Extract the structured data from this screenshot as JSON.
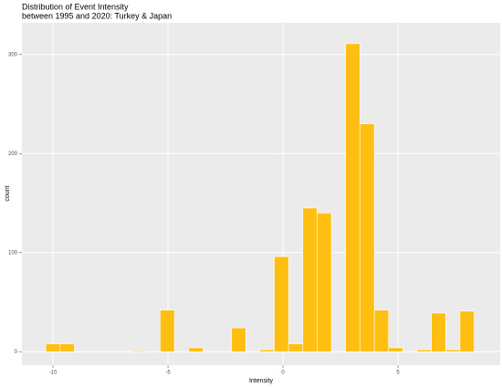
{
  "chart_data": {
    "type": "histogram",
    "title": [
      "Distribution of Event Intensity",
      "between 1995 and 2020: Turkey & Japan"
    ],
    "x_label": "Intensity",
    "y_label": "count",
    "bins": [
      -10.31,
      -9.69,
      -9.07,
      -8.45,
      -7.83,
      -7.21,
      -6.59,
      -5.97,
      -5.34,
      -4.72,
      -4.1,
      -3.48,
      -2.86,
      -2.24,
      -1.62,
      -1.0,
      -0.38,
      0.24,
      0.86,
      1.48,
      2.1,
      2.72,
      3.34,
      3.97,
      4.59,
      5.21,
      5.83,
      6.45,
      7.07,
      7.69,
      8.31
    ],
    "values": [
      8,
      8,
      0,
      0,
      0,
      0,
      1,
      0,
      42,
      0,
      4,
      0,
      0,
      24,
      0,
      2,
      96,
      8,
      145,
      140,
      0,
      311,
      230,
      42,
      4,
      0,
      2,
      39,
      2,
      41
    ],
    "color": "#FFBF12",
    "xlim": [
      -11.35,
      9.44
    ],
    "xticks": [
      -10,
      -5,
      0,
      5
    ],
    "ylim": [
      -13.6,
      332
    ],
    "yticks": [
      0,
      100,
      200,
      300
    ],
    "grid": true
  }
}
